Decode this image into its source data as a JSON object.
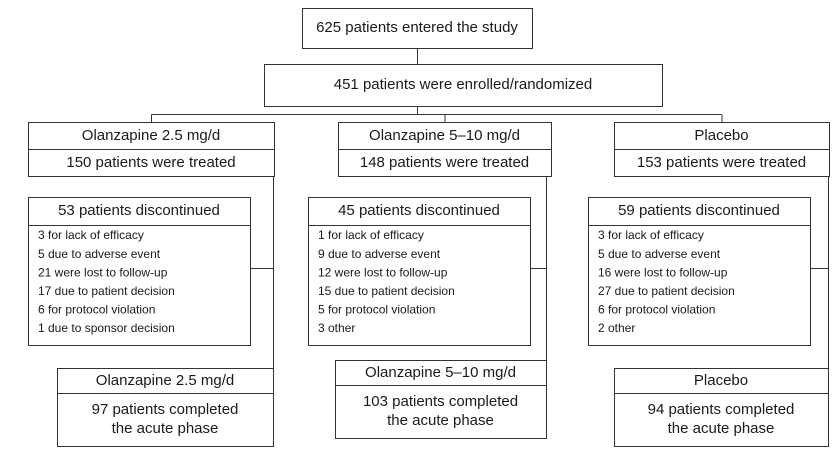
{
  "top": "625 patients entered the study",
  "enrolled": "451 patients were enrolled/randomized",
  "arms": [
    {
      "name": "Olanzapine 2.5 mg/d",
      "treated": "150 patients were treated",
      "discontinued": {
        "title": "53 patients discontinued",
        "reasons": [
          "3 for lack of efficacy",
          "5 due to adverse event",
          "21 were lost to follow-up",
          "17 due to patient decision",
          "6 for protocol violation",
          "1 due to sponsor decision"
        ]
      },
      "completed": {
        "name": "Olanzapine 2.5 mg/d",
        "lines": [
          "97 patients completed",
          "the acute phase"
        ]
      }
    },
    {
      "name": "Olanzapine 5–10 mg/d",
      "treated": "148 patients were treated",
      "discontinued": {
        "title": "45 patients discontinued",
        "reasons": [
          "1 for lack of efficacy",
          "9 due to adverse event",
          "12 were lost to follow-up",
          "15 due to patient decision",
          "5 for protocol violation",
          "3 other"
        ]
      },
      "completed": {
        "name": "Olanzapine 5–10 mg/d",
        "lines": [
          "103 patients completed",
          "the acute phase"
        ]
      }
    },
    {
      "name": "Placebo",
      "treated": "153 patients were treated",
      "discontinued": {
        "title": "59 patients discontinued",
        "reasons": [
          "3 for lack of efficacy",
          "5 due to adverse event",
          "16 were lost to follow-up",
          "27 due to patient decision",
          "6 for protocol violation",
          "2 other"
        ]
      },
      "completed": {
        "name": "Placebo",
        "lines": [
          "94 patients completed",
          "the acute phase"
        ]
      }
    }
  ]
}
